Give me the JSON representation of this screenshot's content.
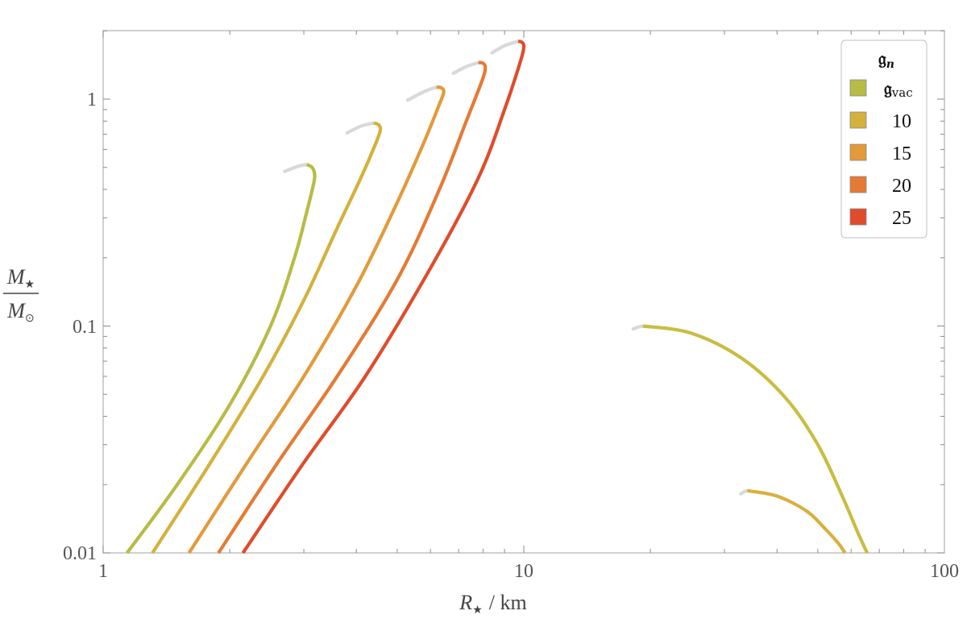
{
  "chart_data": {
    "type": "line",
    "x_scale": "log",
    "y_scale": "log",
    "xlim": [
      1,
      100
    ],
    "ylim": [
      0.01,
      1.8
    ],
    "x_ticks": [
      "1",
      "10",
      "100"
    ],
    "y_ticks": [
      "0.01",
      "0.1",
      "1"
    ],
    "xlabel_main": "R",
    "xlabel_sub": "★",
    "xlabel_unit": "/ km",
    "ylabel_num_main": "M",
    "ylabel_num_sub": "★",
    "ylabel_den_main": "M",
    "ylabel_den_sub": "⊙",
    "unstable_color": "#d9d9d9",
    "legend": {
      "title_main": "𝔤",
      "title_sub": "n",
      "placement": "top-right",
      "entries": [
        {
          "main": "𝔤",
          "sub": "vac",
          "color": "#b8bb45"
        },
        {
          "main": "10",
          "sub": "",
          "color": "#d4b13d"
        },
        {
          "main": "15",
          "sub": "",
          "color": "#e39a3a"
        },
        {
          "main": "20",
          "sub": "",
          "color": "#e57a35"
        },
        {
          "main": "25",
          "sub": "",
          "color": "#df4c2b"
        }
      ]
    },
    "series": [
      {
        "color": "#b8bb45",
        "stable": [
          [
            1.14,
            0.01
          ],
          [
            1.5,
            0.02
          ],
          [
            2.0,
            0.045
          ],
          [
            2.5,
            0.1
          ],
          [
            2.85,
            0.2
          ],
          [
            3.05,
            0.32
          ],
          [
            3.17,
            0.43
          ],
          [
            3.18,
            0.47
          ],
          [
            3.14,
            0.5
          ],
          [
            3.05,
            0.515
          ]
        ],
        "unstable": [
          [
            3.05,
            0.515
          ],
          [
            2.9,
            0.505
          ],
          [
            2.7,
            0.48
          ]
        ]
      },
      {
        "color": "#d4b13d",
        "stable": [
          [
            1.31,
            0.01
          ],
          [
            1.8,
            0.025
          ],
          [
            2.4,
            0.06
          ],
          [
            3.0,
            0.13
          ],
          [
            3.6,
            0.27
          ],
          [
            4.1,
            0.45
          ],
          [
            4.45,
            0.64
          ],
          [
            4.56,
            0.73
          ],
          [
            4.52,
            0.77
          ],
          [
            4.4,
            0.785
          ]
        ],
        "unstable": [
          [
            4.4,
            0.785
          ],
          [
            4.1,
            0.76
          ],
          [
            3.8,
            0.71
          ]
        ]
      },
      {
        "color": "#e39a3a",
        "stable": [
          [
            1.6,
            0.01
          ],
          [
            2.2,
            0.025
          ],
          [
            3.0,
            0.06
          ],
          [
            4.0,
            0.15
          ],
          [
            5.0,
            0.35
          ],
          [
            5.8,
            0.65
          ],
          [
            6.3,
            0.95
          ],
          [
            6.45,
            1.07
          ],
          [
            6.38,
            1.12
          ],
          [
            6.2,
            1.13
          ]
        ],
        "unstable": [
          [
            6.2,
            1.13
          ],
          [
            5.8,
            1.08
          ],
          [
            5.3,
            0.99
          ]
        ]
      },
      {
        "color": "#e57a35",
        "stable": [
          [
            1.88,
            0.01
          ],
          [
            2.6,
            0.025
          ],
          [
            3.6,
            0.06
          ],
          [
            5.0,
            0.16
          ],
          [
            6.3,
            0.4
          ],
          [
            7.3,
            0.8
          ],
          [
            7.95,
            1.2
          ],
          [
            8.1,
            1.37
          ],
          [
            8.0,
            1.44
          ],
          [
            7.8,
            1.45
          ]
        ],
        "unstable": [
          [
            7.8,
            1.45
          ],
          [
            7.3,
            1.39
          ],
          [
            6.8,
            1.3
          ]
        ]
      },
      {
        "color": "#df4c2b",
        "stable": [
          [
            2.15,
            0.01
          ],
          [
            3.0,
            0.025
          ],
          [
            4.2,
            0.06
          ],
          [
            6.0,
            0.18
          ],
          [
            7.8,
            0.45
          ],
          [
            9.0,
            0.9
          ],
          [
            9.8,
            1.45
          ],
          [
            10.0,
            1.7
          ],
          [
            9.9,
            1.78
          ],
          [
            9.7,
            1.8
          ]
        ],
        "unstable": [
          [
            9.7,
            1.8
          ],
          [
            9.0,
            1.72
          ],
          [
            8.4,
            1.6
          ]
        ]
      },
      {
        "color": "#c9bd42",
        "stable": [
          [
            19.2,
            0.1
          ],
          [
            25.0,
            0.093
          ],
          [
            33.0,
            0.072
          ],
          [
            42.0,
            0.048
          ],
          [
            50.0,
            0.03
          ],
          [
            57.0,
            0.018
          ],
          [
            62.0,
            0.0125
          ],
          [
            65.5,
            0.01
          ]
        ],
        "unstable": [
          [
            18.2,
            0.097
          ],
          [
            18.7,
            0.099
          ],
          [
            19.2,
            0.1
          ]
        ]
      },
      {
        "color": "#d8b03d",
        "stable": [
          [
            34.0,
            0.0188
          ],
          [
            40.0,
            0.0178
          ],
          [
            47.0,
            0.0153
          ],
          [
            52.0,
            0.0128
          ],
          [
            56.0,
            0.011
          ],
          [
            58.0,
            0.01
          ]
        ],
        "unstable": [
          [
            32.8,
            0.0182
          ],
          [
            33.4,
            0.0186
          ],
          [
            34.0,
            0.0188
          ]
        ]
      }
    ]
  }
}
